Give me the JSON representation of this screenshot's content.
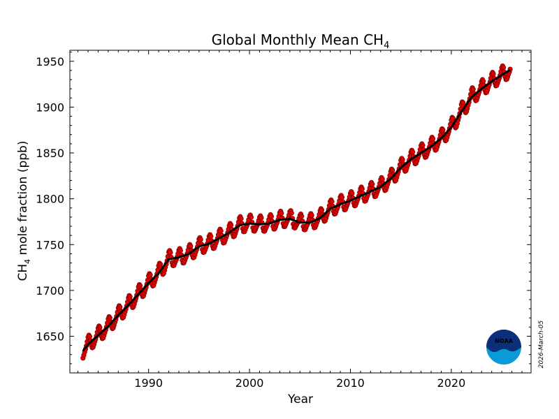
{
  "chart_data": {
    "type": "line",
    "title": {
      "main": "Global Monthly Mean CH",
      "sub": "4"
    },
    "xlabel": "Year",
    "ylabel": {
      "pre": "CH",
      "sub": "4",
      "post": " mole fraction (ppb)"
    },
    "xlim": [
      1982.2,
      2027.9
    ],
    "ylim": [
      1610,
      1962
    ],
    "x_ticks": [
      1990,
      2000,
      2010,
      2020
    ],
    "y_ticks": [
      1650,
      1700,
      1750,
      1800,
      1850,
      1900,
      1950
    ],
    "grid": false,
    "colors": {
      "monthly_points": "#e00000",
      "point_edge": "#7a0000",
      "trend_line": "#000000",
      "noaa_blue": "#0a9ad7",
      "noaa_navy": "#0b2f79"
    },
    "series": [
      {
        "key": "monthly",
        "style": "points",
        "amplitude": 8,
        "x": [
          1983.5,
          1984,
          1985,
          1986,
          1987,
          1988,
          1989,
          1990,
          1991,
          1992,
          1993,
          1994,
          1995,
          1996,
          1997,
          1998,
          1999,
          2000,
          2001,
          2002,
          2003,
          2004,
          2005,
          2006,
          2007,
          2008,
          2009,
          2010,
          2011,
          2012,
          2013,
          2014,
          2015,
          2016,
          2017,
          2018,
          2019,
          2020,
          2021,
          2022,
          2023,
          2024,
          2025,
          2025.9
        ],
        "values": [
          1634,
          1641,
          1651,
          1661,
          1673,
          1684,
          1696,
          1708,
          1719,
          1734,
          1736,
          1740,
          1748,
          1751,
          1757,
          1763,
          1771,
          1773,
          1772,
          1773,
          1777,
          1778,
          1774,
          1774,
          1779,
          1789,
          1794,
          1798,
          1803,
          1808,
          1813,
          1822,
          1834,
          1843,
          1850,
          1857,
          1866,
          1878,
          1895,
          1911,
          1920,
          1928,
          1935,
          1941
        ]
      },
      {
        "key": "trend",
        "style": "line",
        "x": [],
        "values": []
      }
    ]
  },
  "date_stamp": "2026-March-05",
  "logo_text": "NOAA"
}
